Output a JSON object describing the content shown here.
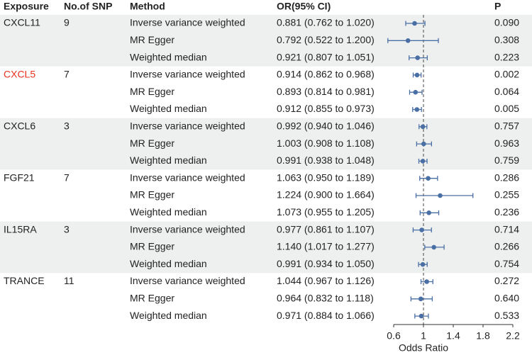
{
  "chart_data": {
    "type": "forest",
    "headers": [
      "Exposure",
      "No.of SNP",
      "Method",
      "OR(95% CI)",
      "P"
    ],
    "groups": [
      {
        "exposure": "CXCL11",
        "snps": 9,
        "color": "#222222"
      },
      {
        "exposure": "CXCL5",
        "snps": 7,
        "color": "#e8321e"
      },
      {
        "exposure": "CXCL6",
        "snps": 3,
        "color": "#222222"
      },
      {
        "exposure": "FGF21",
        "snps": 7,
        "color": "#222222"
      },
      {
        "exposure": "IL15RA",
        "snps": 3,
        "color": "#222222"
      },
      {
        "exposure": "TRANCE",
        "snps": 11,
        "color": "#222222"
      }
    ],
    "methods": [
      "Inverse variance weighted",
      "MR Egger",
      "Weighted median",
      "Inverse variance weighted",
      "MR Egger",
      "Weighted median",
      "Inverse variance weighted",
      "MR Egger",
      "Weighted median",
      "Inverse variance weighted",
      "MR Egger",
      "Weighted median",
      "Inverse variance weighted",
      "MR Egger",
      "Weighted median",
      "Inverse variance weighted",
      "MR Egger",
      "Weighted median"
    ],
    "values": [
      0.881,
      0.792,
      0.921,
      0.914,
      0.893,
      0.912,
      0.992,
      1.003,
      0.991,
      1.063,
      1.224,
      1.073,
      0.977,
      1.14,
      0.991,
      1.044,
      0.964,
      0.971
    ],
    "lower": [
      0.762,
      0.522,
      0.807,
      0.862,
      0.814,
      0.855,
      0.94,
      0.908,
      0.938,
      0.95,
      0.9,
      0.955,
      0.861,
      1.017,
      0.934,
      0.967,
      0.832,
      0.884
    ],
    "upper": [
      1.02,
      1.2,
      1.051,
      0.968,
      0.981,
      0.973,
      1.046,
      1.108,
      1.048,
      1.189,
      1.664,
      1.205,
      1.107,
      1.277,
      1.05,
      1.126,
      1.118,
      1.066
    ],
    "value_labels": [
      "0.881 (0.762 to 1.020)",
      "0.792 (0.522 to 1.200)",
      "0.921 (0.807 to 1.051)",
      "0.914 (0.862 to 0.968)",
      "0.893 (0.814 to 0.981)",
      "0.912 (0.855 to 0.973)",
      "0.992 (0.940 to 1.046)",
      "1.003 (0.908 to 1.108)",
      "0.991 (0.938 to 1.048)",
      "1.063 (0.950 to 1.189)",
      "1.224 (0.900 to 1.664)",
      "1.073 (0.955 to 1.205)",
      "0.977 (0.861 to 1.107)",
      "1.140 (1.017 to 1.277)",
      "0.991 (0.934 to 1.050)",
      "1.044 (0.967 to 1.126)",
      "0.964 (0.832 to 1.118)",
      "0.971 (0.884 to 1.066)"
    ],
    "p": [
      "0.090",
      "0.308",
      "0.223",
      "0.002",
      "0.064",
      "0.005",
      "0.757",
      "0.963",
      "0.759",
      "0.286",
      "0.255",
      "0.236",
      "0.714",
      "0.266",
      "0.754",
      "0.272",
      "0.640",
      "0.533"
    ],
    "color": "#4a6fa5",
    "band_color": "#eef0f0",
    "reference": 1,
    "xlim": [
      0.6,
      2.2
    ],
    "xticks": [
      {
        "value": 0.6,
        "label": "0.6"
      },
      1,
      1.4,
      1.8,
      2.2
    ],
    "xlabel": "Odds Ratio"
  }
}
